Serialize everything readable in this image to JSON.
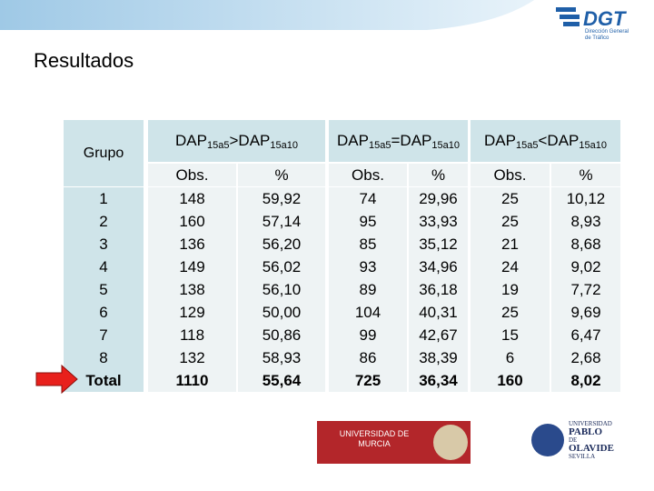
{
  "header": {
    "logo": "DGT",
    "logo_subtitle": [
      "Dirección General",
      "de Tráfico"
    ]
  },
  "title": "Resultados",
  "table": {
    "group_header": "Grupo",
    "column_groups": [
      {
        "parts": [
          "DAP",
          "15a5",
          ">DAP",
          "15a10"
        ]
      },
      {
        "parts": [
          "DAP",
          "15a5",
          "=DAP",
          "15a10"
        ]
      },
      {
        "parts": [
          "DAP",
          "15a5",
          "<DAP",
          "15a10"
        ]
      }
    ],
    "subheaders": [
      "Obs.",
      "%",
      "Obs.",
      "%",
      "Obs.",
      "%"
    ],
    "rows": [
      [
        "1",
        "148",
        "59,92",
        "74",
        "29,96",
        "25",
        "10,12"
      ],
      [
        "2",
        "160",
        "57,14",
        "95",
        "33,93",
        "25",
        "8,93"
      ],
      [
        "3",
        "136",
        "56,20",
        "85",
        "35,12",
        "21",
        "8,68"
      ],
      [
        "4",
        "149",
        "56,02",
        "93",
        "34,96",
        "24",
        "9,02"
      ],
      [
        "5",
        "138",
        "56,10",
        "89",
        "36,18",
        "19",
        "7,72"
      ],
      [
        "6",
        "129",
        "50,00",
        "104",
        "40,31",
        "25",
        "9,69"
      ],
      [
        "7",
        "118",
        "50,86",
        "99",
        "42,67",
        "15",
        "6,47"
      ],
      [
        "8",
        "132",
        "58,93",
        "86",
        "38,39",
        "6",
        "2,68"
      ],
      [
        "Total",
        "1110",
        "55,64",
        "725",
        "36,34",
        "160",
        "8,02"
      ]
    ]
  },
  "footer": {
    "logos": [
      {
        "lines": [
          "UNIVERSIDAD DE",
          "MURCIA"
        ]
      },
      {
        "lines": [
          "UNIVERSIDAD",
          "PABLO",
          "DE",
          "OLAVIDE",
          "SEVILLA"
        ]
      }
    ]
  }
}
